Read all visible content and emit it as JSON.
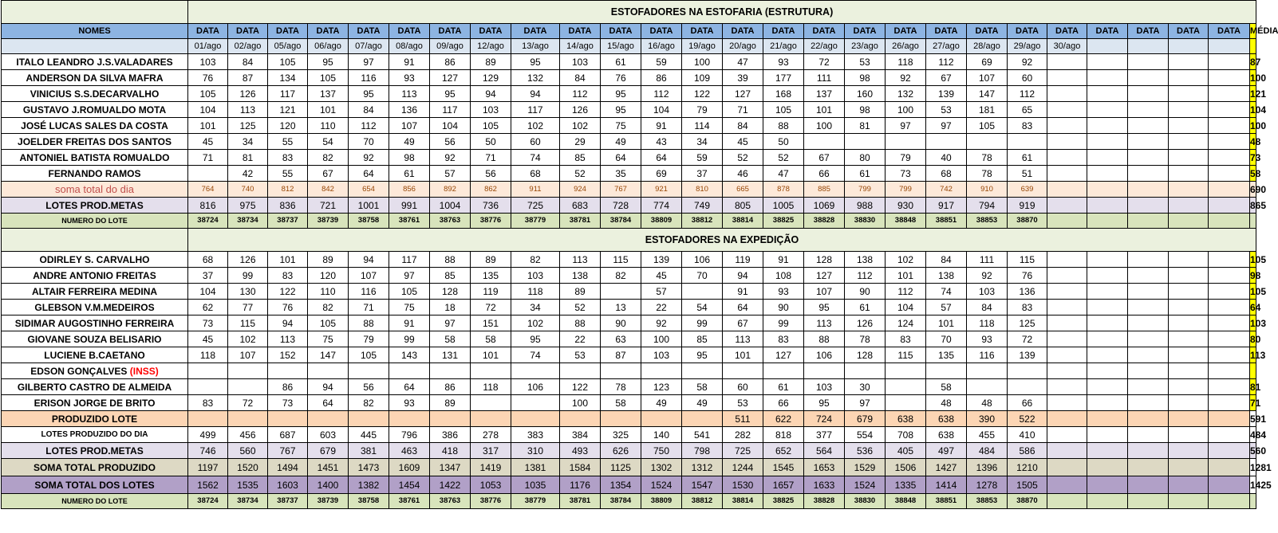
{
  "sections": {
    "estrutura_title": "ESTOFADORES NA ESTOFARIA (ESTRUTURA)",
    "expedicao_title": "ESTOFADORES NA EXPEDIÇÃO"
  },
  "header": {
    "names_label": "NOMES",
    "data_label": "DATA",
    "media_label": "MÉDIA",
    "dates": [
      "01/ago",
      "02/ago",
      "05/ago",
      "06/ago",
      "07/ago",
      "08/ago",
      "09/ago",
      "12/ago",
      "13/ago",
      "14/ago",
      "15/ago",
      "16/ago",
      "19/ago",
      "20/ago",
      "21/ago",
      "22/ago",
      "23/ago",
      "26/ago",
      "27/ago",
      "28/ago",
      "29/ago",
      "30/ago",
      "",
      "",
      "",
      ""
    ]
  },
  "estrutura": {
    "rows": [
      {
        "name": "ITALO LEANDRO J.S.VALADARES",
        "values": [
          "103",
          "84",
          "105",
          "95",
          "97",
          "91",
          "86",
          "89",
          "95",
          "103",
          "61",
          "59",
          "100",
          "47",
          "93",
          "72",
          "53",
          "118",
          "112",
          "69",
          "92",
          "",
          "",
          "",
          "",
          ""
        ],
        "media": "87"
      },
      {
        "name": "ANDERSON DA SILVA MAFRA",
        "values": [
          "76",
          "87",
          "134",
          "105",
          "116",
          "93",
          "127",
          "129",
          "132",
          "84",
          "76",
          "86",
          "109",
          "39",
          "177",
          "111",
          "98",
          "92",
          "67",
          "107",
          "60",
          "",
          "",
          "",
          "",
          ""
        ],
        "media": "100"
      },
      {
        "name": "VINICIUS S.S.DECARVALHO",
        "values": [
          "105",
          "126",
          "117",
          "137",
          "95",
          "113",
          "95",
          "94",
          "94",
          "112",
          "95",
          "112",
          "122",
          "127",
          "168",
          "137",
          "160",
          "132",
          "139",
          "147",
          "112",
          "",
          "",
          "",
          "",
          ""
        ],
        "media": "121"
      },
      {
        "name": "GUSTAVO J.ROMUALDO MOTA",
        "values": [
          "104",
          "113",
          "121",
          "101",
          "84",
          "136",
          "117",
          "103",
          "117",
          "126",
          "95",
          "104",
          "79",
          "71",
          "105",
          "101",
          "98",
          "100",
          "53",
          "181",
          "65",
          "",
          "",
          "",
          "",
          ""
        ],
        "media": "104"
      },
      {
        "name": "JOSÉ LUCAS SALES DA COSTA",
        "values": [
          "101",
          "125",
          "120",
          "110",
          "112",
          "107",
          "104",
          "105",
          "102",
          "102",
          "75",
          "91",
          "114",
          "84",
          "88",
          "100",
          "81",
          "97",
          "97",
          "105",
          "83",
          "",
          "",
          "",
          "",
          ""
        ],
        "media": "100"
      },
      {
        "name": "JOELDER FREITAS DOS SANTOS",
        "values": [
          "45",
          "34",
          "55",
          "54",
          "70",
          "49",
          "56",
          "50",
          "60",
          "29",
          "49",
          "43",
          "34",
          "45",
          "50",
          "",
          "",
          "",
          "",
          "",
          "",
          "",
          "",
          "",
          "",
          ""
        ],
        "media": "48"
      },
      {
        "name": "ANTONIEL BATISTA ROMUALDO",
        "values": [
          "71",
          "81",
          "83",
          "82",
          "92",
          "98",
          "92",
          "71",
          "74",
          "85",
          "64",
          "64",
          "59",
          "52",
          "52",
          "67",
          "80",
          "79",
          "40",
          "78",
          "61",
          "",
          "",
          "",
          "",
          ""
        ],
        "media": "73"
      },
      {
        "name": "FERNANDO RAMOS",
        "values": [
          "",
          "42",
          "55",
          "67",
          "64",
          "61",
          "57",
          "56",
          "68",
          "52",
          "35",
          "69",
          "37",
          "46",
          "47",
          "66",
          "61",
          "73",
          "68",
          "78",
          "51",
          "",
          "",
          "",
          "",
          ""
        ],
        "media": "58"
      }
    ],
    "soma": {
      "name": "soma total  do dia",
      "values": [
        "764",
        "740",
        "812",
        "842",
        "654",
        "856",
        "892",
        "862",
        "911",
        "924",
        "767",
        "921",
        "810",
        "665",
        "878",
        "885",
        "799",
        "799",
        "742",
        "910",
        "639",
        "",
        "",
        "",
        "",
        ""
      ],
      "media": "690"
    },
    "lotes": {
      "name": "LOTES PROD.METAS",
      "values": [
        "816",
        "975",
        "836",
        "721",
        "1001",
        "991",
        "1004",
        "736",
        "725",
        "683",
        "728",
        "774",
        "749",
        "805",
        "1005",
        "1069",
        "988",
        "930",
        "917",
        "794",
        "919",
        "",
        "",
        "",
        "",
        ""
      ],
      "media": "865"
    },
    "lote_num": {
      "name": "NUMERO DO LOTE",
      "values": [
        "38724",
        "38734",
        "38737",
        "38739",
        "38758",
        "38761",
        "38763",
        "38776",
        "38779",
        "38781",
        "38784",
        "38809",
        "38812",
        "38814",
        "38825",
        "38828",
        "38830",
        "38848",
        "38851",
        "38853",
        "38870",
        "",
        "",
        "",
        "",
        ""
      ],
      "media": ""
    }
  },
  "expedicao": {
    "rows": [
      {
        "name": "ODIRLEY S. CARVALHO",
        "values": [
          "68",
          "126",
          "101",
          "89",
          "94",
          "117",
          "88",
          "89",
          "82",
          "113",
          "115",
          "139",
          "106",
          "119",
          "91",
          "128",
          "138",
          "102",
          "84",
          "111",
          "115",
          "",
          "",
          "",
          "",
          ""
        ],
        "media": "105"
      },
      {
        "name": "ANDRE ANTONIO FREITAS",
        "values": [
          "37",
          "99",
          "83",
          "120",
          "107",
          "97",
          "85",
          "135",
          "103",
          "138",
          "82",
          "45",
          "70",
          "94",
          "108",
          "127",
          "112",
          "101",
          "138",
          "92",
          "76",
          "",
          "",
          "",
          "",
          ""
        ],
        "media": "98"
      },
      {
        "name": "ALTAIR FERREIRA MEDINA",
        "values": [
          "104",
          "130",
          "122",
          "110",
          "116",
          "105",
          "128",
          "119",
          "118",
          "89",
          "",
          "57",
          "",
          "91",
          "93",
          "107",
          "90",
          "112",
          "74",
          "103",
          "136",
          "",
          "",
          "",
          "",
          ""
        ],
        "media": "105"
      },
      {
        "name": "GLEBSON V.M.MEDEIROS",
        "values": [
          "62",
          "77",
          "76",
          "82",
          "71",
          "75",
          "18",
          "72",
          "34",
          "52",
          "13",
          "22",
          "54",
          "64",
          "90",
          "95",
          "61",
          "104",
          "57",
          "84",
          "83",
          "",
          "",
          "",
          "",
          ""
        ],
        "media": "64"
      },
      {
        "name": "SIDIMAR AUGOSTINHO FERREIRA",
        "values": [
          "73",
          "115",
          "94",
          "105",
          "88",
          "91",
          "97",
          "151",
          "102",
          "88",
          "90",
          "92",
          "99",
          "67",
          "99",
          "113",
          "126",
          "124",
          "101",
          "118",
          "125",
          "",
          "",
          "",
          "",
          ""
        ],
        "media": "103"
      },
      {
        "name": "GIOVANE SOUZA BELISARIO",
        "values": [
          "45",
          "102",
          "113",
          "75",
          "79",
          "99",
          "58",
          "58",
          "95",
          "22",
          "63",
          "100",
          "85",
          "113",
          "83",
          "88",
          "78",
          "83",
          "70",
          "93",
          "72",
          "",
          "",
          "",
          "",
          ""
        ],
        "media": "80"
      },
      {
        "name": "LUCIENE B.CAETANO",
        "values": [
          "118",
          "107",
          "152",
          "147",
          "105",
          "143",
          "131",
          "101",
          "74",
          "53",
          "87",
          "103",
          "95",
          "101",
          "127",
          "106",
          "128",
          "115",
          "135",
          "116",
          "139",
          "",
          "",
          "",
          "",
          ""
        ],
        "media": "113"
      },
      {
        "name": "EDSON GONÇALVES",
        "name_suffix": "(INSS)",
        "values": [
          "",
          "",
          "",
          "",
          "",
          "",
          "",
          "",
          "",
          "",
          "",
          "",
          "",
          "",
          "",
          "",
          "",
          "",
          "",
          "",
          "",
          "",
          "",
          "",
          "",
          ""
        ],
        "media": ""
      },
      {
        "name": "GILBERTO CASTRO DE ALMEIDA",
        "values": [
          "",
          "",
          "86",
          "94",
          "56",
          "64",
          "86",
          "118",
          "106",
          "122",
          "78",
          "123",
          "58",
          "60",
          "61",
          "103",
          "30",
          "",
          "58",
          "",
          "",
          "",
          "",
          "",
          "",
          ""
        ],
        "media": "81"
      },
      {
        "name": "ERISON JORGE DE BRITO",
        "values": [
          "83",
          "72",
          "73",
          "64",
          "82",
          "93",
          "89",
          "",
          "",
          "100",
          "58",
          "49",
          "49",
          "53",
          "66",
          "95",
          "97",
          "",
          "48",
          "48",
          "66",
          "",
          "",
          "",
          "",
          ""
        ],
        "media": "71"
      }
    ],
    "produzido_lote": {
      "name": "PRODUZIDO LOTE",
      "values": [
        "",
        "",
        "",
        "",
        "",
        "",
        "",
        "",
        "",
        "",
        "",
        "",
        "",
        "511",
        "622",
        "724",
        "679",
        "638",
        "638",
        "390",
        "522",
        "",
        "",
        "",
        "",
        ""
      ],
      "media": "591"
    },
    "lotes_dia": {
      "name": "LOTES PRODUZIDO DO DIA",
      "values": [
        "499",
        "456",
        "687",
        "603",
        "445",
        "796",
        "386",
        "278",
        "383",
        "384",
        "325",
        "140",
        "541",
        "282",
        "818",
        "377",
        "554",
        "708",
        "638",
        "455",
        "410",
        "",
        "",
        "",
        "",
        ""
      ],
      "media": "484"
    },
    "lotes_metas": {
      "name": "LOTES PROD.METAS",
      "values": [
        "746",
        "560",
        "767",
        "679",
        "381",
        "463",
        "418",
        "317",
        "310",
        "493",
        "626",
        "750",
        "798",
        "725",
        "652",
        "564",
        "536",
        "405",
        "497",
        "484",
        "586",
        "",
        "",
        "",
        "",
        ""
      ],
      "media": "560"
    },
    "soma_produzido": {
      "name": "SOMA TOTAL PRODUZIDO",
      "values": [
        "1197",
        "1520",
        "1494",
        "1451",
        "1473",
        "1609",
        "1347",
        "1419",
        "1381",
        "1584",
        "1125",
        "1302",
        "1312",
        "1244",
        "1545",
        "1653",
        "1529",
        "1506",
        "1427",
        "1396",
        "1210",
        "",
        "",
        "",
        "",
        ""
      ],
      "media": "1281"
    },
    "soma_lotes": {
      "name": "SOMA TOTAL DOS LOTES",
      "values": [
        "1562",
        "1535",
        "1603",
        "1400",
        "1382",
        "1454",
        "1422",
        "1053",
        "1035",
        "1176",
        "1354",
        "1524",
        "1547",
        "1530",
        "1657",
        "1633",
        "1524",
        "1335",
        "1414",
        "1278",
        "1505",
        "",
        "",
        "",
        "",
        ""
      ],
      "media": "1425"
    },
    "lote_num": {
      "name": "NUMERO DO LOTE",
      "values": [
        "38724",
        "38734",
        "38737",
        "38739",
        "38758",
        "38761",
        "38763",
        "38776",
        "38779",
        "38781",
        "38784",
        "38809",
        "38812",
        "38814",
        "38825",
        "38828",
        "38830",
        "38848",
        "38851",
        "38853",
        "38870",
        "",
        "",
        "",
        "",
        ""
      ],
      "media": ""
    }
  }
}
